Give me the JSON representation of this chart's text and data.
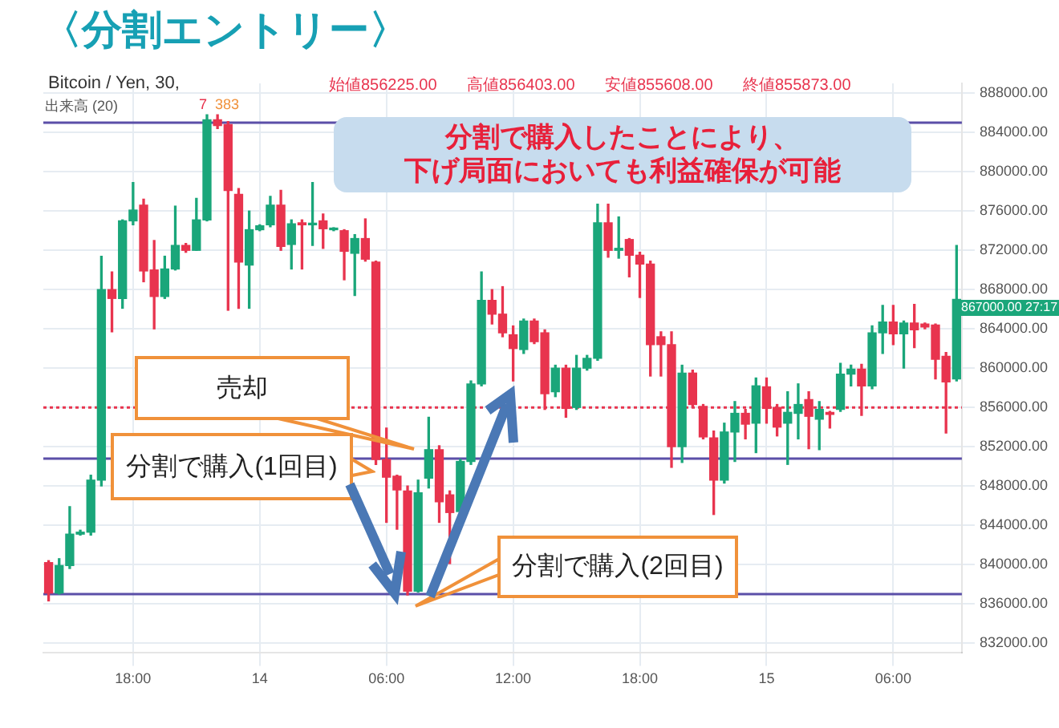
{
  "chart_data": {
    "type": "candlestick",
    "title": "〈分割エントリー〉",
    "categories": [
      null,
      null,
      null,
      null,
      null,
      null,
      null,
      null,
      "18:00",
      null,
      null,
      null,
      null,
      null,
      null,
      null,
      null,
      null,
      null,
      null,
      "14",
      null,
      null,
      null,
      null,
      null,
      null,
      null,
      null,
      null,
      null,
      null,
      "06:00",
      null,
      null,
      null,
      null,
      null,
      null,
      null,
      null,
      null,
      null,
      null,
      "12:00",
      null,
      null,
      null,
      null,
      null,
      null,
      null,
      null,
      null,
      null,
      null,
      "18:00",
      null,
      null,
      null,
      null,
      null,
      null,
      null,
      null,
      null,
      null,
      null,
      "15",
      null,
      null,
      null,
      null,
      null,
      null,
      null,
      null,
      null,
      null,
      null,
      "06:00",
      null,
      null,
      null,
      null,
      null,
      null
    ],
    "ohlc": [
      [
        840200,
        840400,
        836300,
        837100
      ],
      [
        837100,
        840600,
        837000,
        839900
      ],
      [
        839900,
        845900,
        839600,
        843100
      ],
      [
        843100,
        843500,
        843000,
        843300
      ],
      [
        843300,
        849100,
        843000,
        848600
      ],
      [
        848600,
        871400,
        848000,
        868000
      ],
      [
        868000,
        869800,
        863700,
        867100
      ],
      [
        867100,
        875100,
        866100,
        875000
      ],
      [
        875000,
        878900,
        874600,
        876100
      ],
      [
        876600,
        877200,
        868800,
        869900
      ],
      [
        870000,
        873000,
        864000,
        867300
      ],
      [
        867300,
        871400,
        867100,
        870100
      ],
      [
        870100,
        876500,
        870000,
        872500
      ],
      [
        872500,
        872700,
        871800,
        872000
      ],
      [
        872000,
        877300,
        872000,
        875100
      ],
      [
        875100,
        885800,
        875000,
        885300
      ],
      [
        885300,
        885800,
        884400,
        884700
      ],
      [
        884800,
        885100,
        865900,
        878100
      ],
      [
        877700,
        878300,
        866100,
        870800
      ],
      [
        870500,
        876000,
        866100,
        874100
      ],
      [
        874100,
        874600,
        874000,
        874500
      ],
      [
        874600,
        877500,
        874400,
        876600
      ],
      [
        876600,
        878100,
        872000,
        872400
      ],
      [
        872600,
        875100,
        870100,
        874700
      ],
      [
        874800,
        875100,
        870100,
        874600
      ],
      [
        874600,
        878900,
        872500,
        874700
      ],
      [
        875000,
        875700,
        872200,
        874200
      ],
      [
        874100,
        874300,
        874000,
        874200
      ],
      [
        874000,
        874100,
        869000,
        871900
      ],
      [
        871700,
        873600,
        867400,
        873200
      ],
      [
        873200,
        875200,
        870900,
        871100
      ],
      [
        870800,
        870900,
        850200,
        850700
      ],
      [
        850700,
        853900,
        844300,
        848900
      ],
      [
        849000,
        849100,
        843600,
        847600
      ],
      [
        847500,
        848000,
        836900,
        837300
      ],
      [
        837300,
        848600,
        837200,
        847300
      ],
      [
        848800,
        855000,
        847800,
        851700
      ],
      [
        851700,
        852100,
        844300,
        846400
      ],
      [
        847100,
        847500,
        840100,
        845300
      ],
      [
        845400,
        850700,
        845100,
        850500
      ],
      [
        850500,
        858700,
        850200,
        858400
      ],
      [
        858400,
        869800,
        858200,
        866900
      ],
      [
        866900,
        868000,
        864500,
        865500
      ],
      [
        865500,
        868300,
        863200,
        863600
      ],
      [
        863400,
        864300,
        858700,
        862000
      ],
      [
        861900,
        865000,
        861500,
        864800
      ],
      [
        864800,
        865000,
        862500,
        862700
      ],
      [
        863600,
        863900,
        855800,
        857400
      ],
      [
        857600,
        860300,
        857100,
        860000
      ],
      [
        860000,
        860300,
        855000,
        855900
      ],
      [
        856000,
        861300,
        855800,
        860000
      ],
      [
        860000,
        861300,
        859800,
        861000
      ],
      [
        861000,
        876700,
        860800,
        874800
      ],
      [
        874800,
        876700,
        871300,
        872000
      ],
      [
        872000,
        875400,
        871200,
        872200
      ],
      [
        873100,
        873200,
        869300,
        871500
      ],
      [
        871500,
        871800,
        867200,
        870600
      ],
      [
        870600,
        870900,
        859200,
        862400
      ],
      [
        863200,
        863700,
        859200,
        862400
      ],
      [
        862400,
        863700,
        849900,
        852000
      ],
      [
        852000,
        860300,
        850400,
        859500
      ],
      [
        859500,
        859800,
        856000,
        856300
      ],
      [
        856100,
        856300,
        852800,
        853000
      ],
      [
        852900,
        853600,
        845100,
        848600
      ],
      [
        848600,
        854400,
        848300,
        853500
      ],
      [
        853500,
        856600,
        850500,
        855400
      ],
      [
        855400,
        855800,
        852800,
        854300
      ],
      [
        854400,
        859000,
        851400,
        858200
      ],
      [
        858100,
        859000,
        854400,
        855900
      ],
      [
        856000,
        856300,
        853100,
        854000
      ],
      [
        854400,
        857600,
        850200,
        855500
      ],
      [
        855400,
        858400,
        852800,
        856300
      ],
      [
        856800,
        857600,
        851800,
        855100
      ],
      [
        854800,
        856600,
        851700,
        855800
      ],
      [
        855500,
        855600,
        853900,
        855300
      ],
      [
        855800,
        860500,
        855600,
        859400
      ],
      [
        859400,
        860300,
        858200,
        859900
      ],
      [
        859900,
        860400,
        855200,
        858200
      ],
      [
        858200,
        864300,
        857900,
        863600
      ],
      [
        863600,
        866400,
        861500,
        864700
      ],
      [
        864700,
        866400,
        862400,
        863500
      ],
      [
        863500,
        864800,
        860000,
        864600
      ],
      [
        864600,
        866500,
        862100,
        863900
      ],
      [
        864500,
        864600,
        864000,
        864200
      ],
      [
        864400,
        864500,
        858900,
        860900
      ],
      [
        861200,
        861600,
        853400,
        858600
      ],
      [
        858900,
        872500,
        858700,
        867000
      ]
    ],
    "ylim": [
      831000,
      889000
    ],
    "yticks": [
      {
        "value": 832000,
        "label": "832000.00"
      },
      {
        "value": 836000,
        "label": "836000.00"
      },
      {
        "value": 840000,
        "label": "840000.00"
      },
      {
        "value": 844000,
        "label": "844000.00"
      },
      {
        "value": 848000,
        "label": "848000.00"
      },
      {
        "value": 852000,
        "label": "852000.00"
      },
      {
        "value": 856000,
        "label": "856000.00"
      },
      {
        "value": 860000,
        "label": "860000.00"
      },
      {
        "value": 864000,
        "label": "864000.00"
      },
      {
        "value": 868000,
        "label": "868000.00"
      },
      {
        "value": 872000,
        "label": "872000.00"
      },
      {
        "value": 876000,
        "label": "876000.00"
      },
      {
        "value": 880000,
        "label": "880000.00"
      },
      {
        "value": 884000,
        "label": "884000.00"
      },
      {
        "value": 888000,
        "label": "888000.00"
      }
    ],
    "grid": true,
    "ref_lines": [
      {
        "axis": "y",
        "value": 885000,
        "color": "#5b4fa8",
        "line_style": "solid"
      },
      {
        "axis": "y",
        "value": 850800,
        "color": "#5b4fa8",
        "line_style": "solid"
      },
      {
        "axis": "y",
        "value": 837000,
        "color": "#5b4fa8",
        "line_style": "solid"
      },
      {
        "axis": "y",
        "value": 856000,
        "color": "#e8344e",
        "line_style": "dotted"
      }
    ],
    "annotations": [
      "Bitcoin / Yen, 30,",
      "始値856225.00",
      "高値856403.00",
      "安値855608.00",
      "終値855873.00",
      "出来高 (20)",
      "7",
      "383",
      "867000.00",
      "27:17",
      "分割で購入したことにより、",
      "下げ局面においても利益確保が可能",
      "売却",
      "分割で購入(1回目)",
      "分割で購入(2回目)"
    ]
  }
}
